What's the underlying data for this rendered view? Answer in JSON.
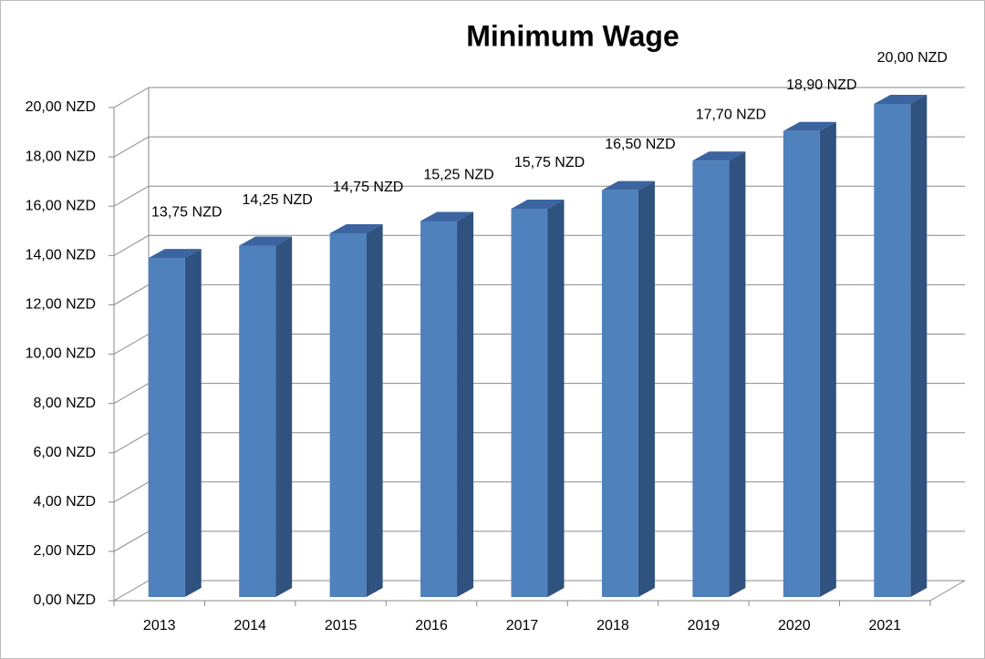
{
  "chart_data": {
    "type": "bar3d",
    "title": "Minimum Wage",
    "categories": [
      "2013",
      "2014",
      "2015",
      "2016",
      "2017",
      "2018",
      "2019",
      "2020",
      "2021"
    ],
    "values": [
      13.75,
      14.25,
      14.75,
      15.25,
      15.75,
      16.5,
      17.7,
      18.9,
      20
    ],
    "value_labels": [
      "13,75 NZD",
      "14,25 NZD",
      "14,75 NZD",
      "15,25 NZD",
      "15,75 NZD",
      "16,50 NZD",
      "17,70 NZD",
      "18,90 NZD",
      "20,00 NZD"
    ],
    "color": "#4f81bd",
    "ylim": [
      0,
      20
    ],
    "yticks": [
      {
        "value": 0,
        "label": "0,00 NZD"
      },
      {
        "value": 2,
        "label": "2,00 NZD"
      },
      {
        "value": 4,
        "label": "4,00 NZD"
      },
      {
        "value": 6,
        "label": "6,00 NZD"
      },
      {
        "value": 8,
        "label": "8,00 NZD"
      },
      {
        "value": 10,
        "label": "10,00 NZD"
      },
      {
        "value": 12,
        "label": "12,00 NZD"
      },
      {
        "value": 14,
        "label": "14,00 NZD"
      },
      {
        "value": 16,
        "label": "16,00 NZD"
      },
      {
        "value": 18,
        "label": "18,00 NZD"
      },
      {
        "value": 20,
        "label": "20,00 NZD"
      }
    ],
    "grid": true
  }
}
